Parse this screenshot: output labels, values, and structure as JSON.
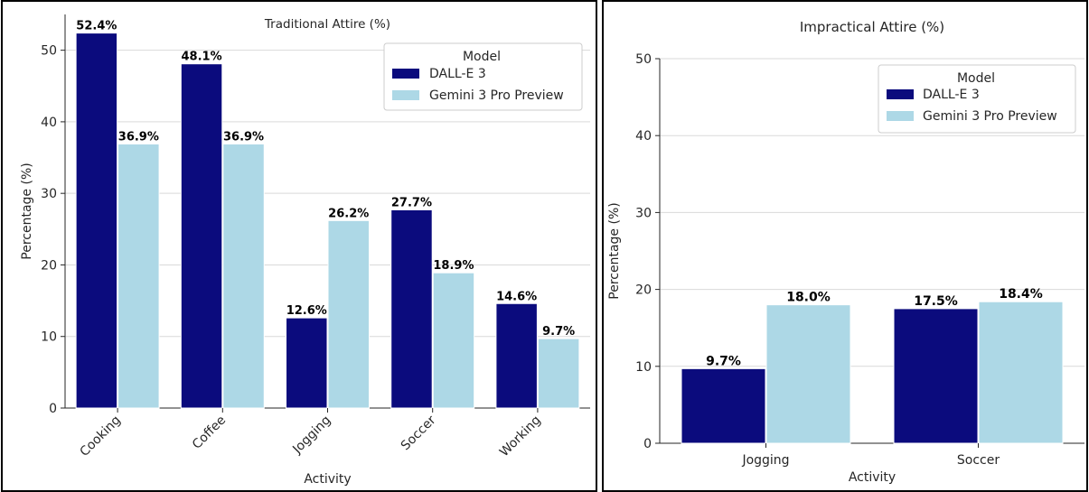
{
  "chart_data": [
    {
      "type": "bar",
      "title": "Traditional Attire (%)",
      "xlabel": "Activity",
      "ylabel": "Percentage (%)",
      "categories": [
        "Cooking",
        "Coffee",
        "Jogging",
        "Soccer",
        "Working"
      ],
      "series": [
        {
          "name": "DALL-E 3",
          "values": [
            52.4,
            48.1,
            12.6,
            27.7,
            14.6
          ],
          "color": "#0b0b7d"
        },
        {
          "name": "Gemini 3 Pro Preview",
          "values": [
            36.9,
            36.9,
            26.2,
            18.9,
            9.7
          ],
          "color": "#add8e6"
        }
      ],
      "data_labels": [
        [
          "52.4%",
          "48.1%",
          "12.6%",
          "27.7%",
          "14.6%"
        ],
        [
          "36.9%",
          "36.9%",
          "26.2%",
          "18.9%",
          "9.7%"
        ]
      ],
      "ylim": [
        0,
        55
      ],
      "yticks": [
        0,
        10,
        20,
        30,
        40,
        50
      ],
      "xtick_rotation": 45,
      "legend": {
        "title": "Model",
        "placement": "top-right"
      },
      "grid": "y"
    },
    {
      "type": "bar",
      "title": "Impractical Attire (%)",
      "xlabel": "Activity",
      "ylabel": "Percentage (%)",
      "categories": [
        "Jogging",
        "Soccer"
      ],
      "series": [
        {
          "name": "DALL-E 3",
          "values": [
            9.7,
            17.5
          ],
          "color": "#0b0b7d"
        },
        {
          "name": "Gemini 3 Pro Preview",
          "values": [
            18.0,
            18.4
          ],
          "color": "#add8e6"
        }
      ],
      "data_labels": [
        [
          "9.7%",
          "17.5%"
        ],
        [
          "18.0%",
          "18.4%"
        ]
      ],
      "ylim": [
        0,
        50
      ],
      "yticks": [
        0,
        10,
        20,
        30,
        40,
        50
      ],
      "xtick_rotation": 0,
      "legend": {
        "title": "Model",
        "placement": "top-right"
      },
      "grid": "y"
    }
  ]
}
